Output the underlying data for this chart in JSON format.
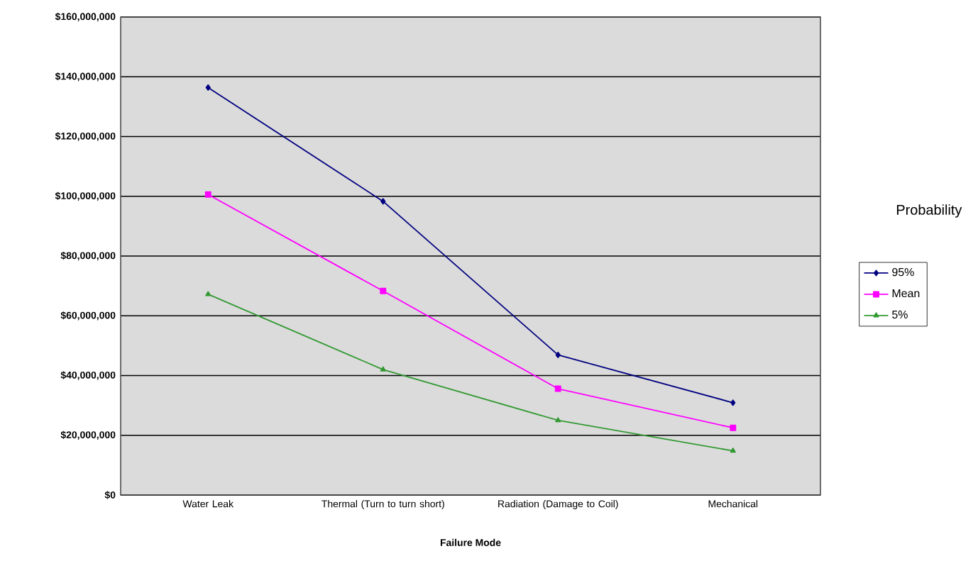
{
  "chart_data": {
    "type": "line",
    "xlabel": "Failure Mode",
    "legend_title": "Probability",
    "categories": [
      "Water Leak",
      "Thermal (Turn to turn short)",
      "Radiation (Damage to Coil)",
      "Mechanical"
    ],
    "series": [
      {
        "name": "95%",
        "color": "#000080",
        "marker": "diamond",
        "values": [
          136400000,
          98300000,
          46900000,
          30900000
        ]
      },
      {
        "name": "Mean",
        "color": "#ff00ff",
        "marker": "square",
        "values": [
          100600000,
          68300000,
          35600000,
          22500000
        ]
      },
      {
        "name": "5%",
        "color": "#339933",
        "marker": "triangle",
        "values": [
          67200000,
          42000000,
          25000000,
          14800000
        ]
      }
    ],
    "ylim": [
      0,
      160000000
    ],
    "yticks": [
      {
        "value": 0,
        "label": "$0"
      },
      {
        "value": 20000000,
        "label": "$20,000,000"
      },
      {
        "value": 40000000,
        "label": "$40,000,000"
      },
      {
        "value": 60000000,
        "label": "$60,000,000"
      },
      {
        "value": 80000000,
        "label": "$80,000,000"
      },
      {
        "value": 100000000,
        "label": "$100,000,000"
      },
      {
        "value": 120000000,
        "label": "$120,000,000"
      },
      {
        "value": 140000000,
        "label": "$140,000,000"
      },
      {
        "value": 160000000,
        "label": "$160,000,000"
      }
    ],
    "grid": "y",
    "legend": "right",
    "line_style": "solid"
  }
}
